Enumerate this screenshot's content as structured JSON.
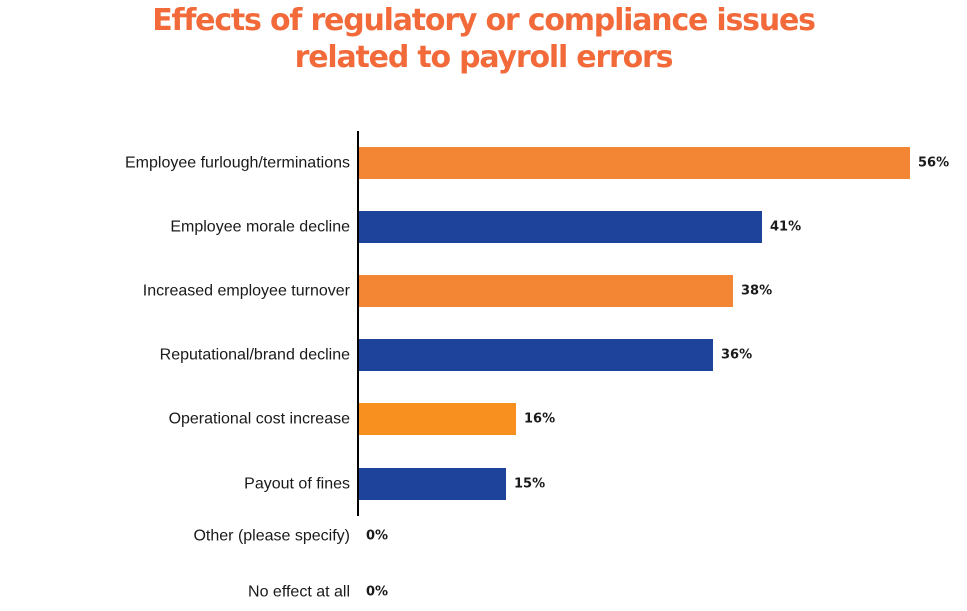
{
  "title_lines": [
    "Effects of regulatory or compliance issues",
    "related to payroll errors"
  ],
  "colors": {
    "title": "#f26a3a",
    "orange": "#f38634",
    "orange_alt": "#f7901e",
    "blue": "#1d439a",
    "axis": "#000000"
  },
  "chart_data": {
    "type": "bar",
    "orientation": "horizontal",
    "title": "Effects of regulatory or compliance issues related to payroll errors",
    "categories": [
      "Employee furlough/terminations",
      "Employee morale decline",
      "Increased employee turnover",
      "Reputational/brand decline",
      "Operational cost increase",
      "Payout of fines",
      "Other (please specify)",
      "No effect at all"
    ],
    "values": [
      56,
      41,
      38,
      36,
      16,
      15,
      0,
      0
    ],
    "value_labels": [
      "56%",
      "41%",
      "38%",
      "36%",
      "16%",
      "15%",
      "0%",
      "0%"
    ],
    "bar_colors": [
      "#f38634",
      "#1d439a",
      "#f38634",
      "#1d439a",
      "#f7901e",
      "#1d439a",
      "#f38634",
      "#1d439a"
    ],
    "unit": "%",
    "xlim": [
      0,
      56
    ],
    "grid": false,
    "legend": "none"
  }
}
